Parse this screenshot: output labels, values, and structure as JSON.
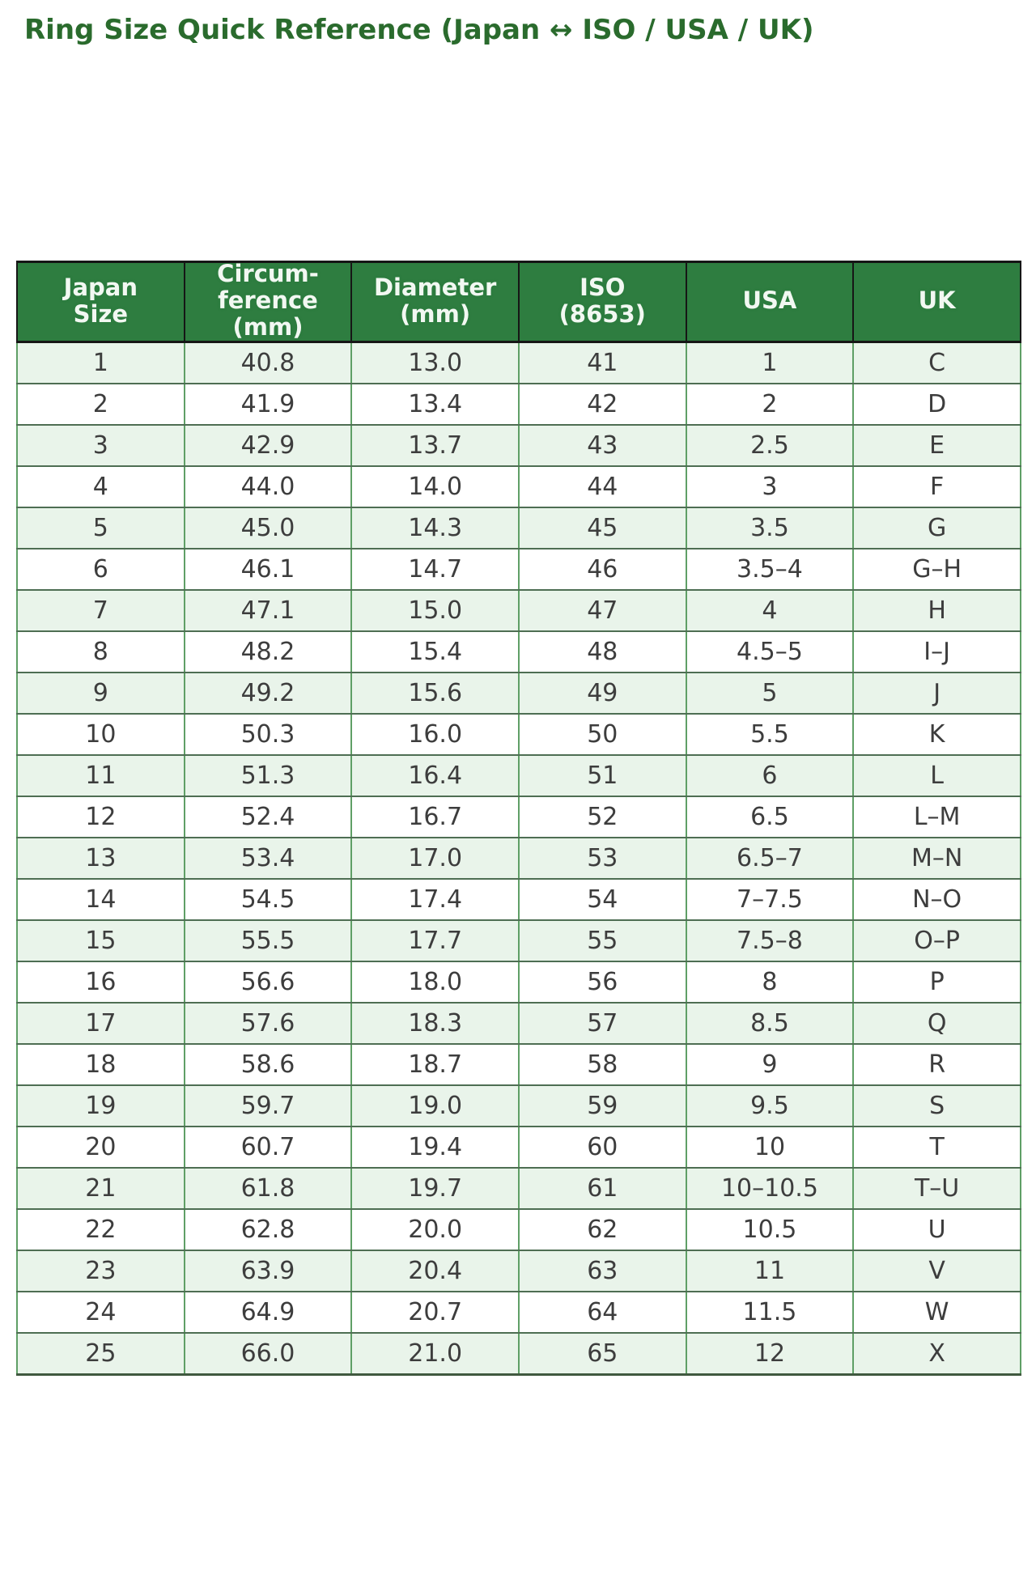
{
  "page": {
    "title": "Ring Size Quick Reference (Japan ↔ ISO / USA / UK)"
  },
  "colors": {
    "title_text": "#2a6b2d",
    "header_background": "#2e7d40",
    "header_text": "#f2f8f2",
    "header_border": "#161616",
    "row_alt_background": "#e9f4ea",
    "row_background": "#ffffff",
    "vertical_border": "#5f9f66",
    "horizontal_border": "#4e6e53",
    "cell_text": "#3d3d3d"
  },
  "table": {
    "columns": [
      "Japan\nSize",
      "Circum-\nference\n(mm)",
      "Diameter\n(mm)",
      "ISO\n(8653)",
      "USA",
      "UK"
    ],
    "rows": [
      [
        "1",
        "40.8",
        "13.0",
        "41",
        "1",
        "C"
      ],
      [
        "2",
        "41.9",
        "13.4",
        "42",
        "2",
        "D"
      ],
      [
        "3",
        "42.9",
        "13.7",
        "43",
        "2.5",
        "E"
      ],
      [
        "4",
        "44.0",
        "14.0",
        "44",
        "3",
        "F"
      ],
      [
        "5",
        "45.0",
        "14.3",
        "45",
        "3.5",
        "G"
      ],
      [
        "6",
        "46.1",
        "14.7",
        "46",
        "3.5–4",
        "G–H"
      ],
      [
        "7",
        "47.1",
        "15.0",
        "47",
        "4",
        "H"
      ],
      [
        "8",
        "48.2",
        "15.4",
        "48",
        "4.5–5",
        "I–J"
      ],
      [
        "9",
        "49.2",
        "15.6",
        "49",
        "5",
        "J"
      ],
      [
        "10",
        "50.3",
        "16.0",
        "50",
        "5.5",
        "K"
      ],
      [
        "11",
        "51.3",
        "16.4",
        "51",
        "6",
        "L"
      ],
      [
        "12",
        "52.4",
        "16.7",
        "52",
        "6.5",
        "L–M"
      ],
      [
        "13",
        "53.4",
        "17.0",
        "53",
        "6.5–7",
        "M–N"
      ],
      [
        "14",
        "54.5",
        "17.4",
        "54",
        "7–7.5",
        "N–O"
      ],
      [
        "15",
        "55.5",
        "17.7",
        "55",
        "7.5–8",
        "O–P"
      ],
      [
        "16",
        "56.6",
        "18.0",
        "56",
        "8",
        "P"
      ],
      [
        "17",
        "57.6",
        "18.3",
        "57",
        "8.5",
        "Q"
      ],
      [
        "18",
        "58.6",
        "18.7",
        "58",
        "9",
        "R"
      ],
      [
        "19",
        "59.7",
        "19.0",
        "59",
        "9.5",
        "S"
      ],
      [
        "20",
        "60.7",
        "19.4",
        "60",
        "10",
        "T"
      ],
      [
        "21",
        "61.8",
        "19.7",
        "61",
        "10–10.5",
        "T–U"
      ],
      [
        "22",
        "62.8",
        "20.0",
        "62",
        "10.5",
        "U"
      ],
      [
        "23",
        "63.9",
        "20.4",
        "63",
        "11",
        "V"
      ],
      [
        "24",
        "64.9",
        "20.7",
        "64",
        "11.5",
        "W"
      ],
      [
        "25",
        "66.0",
        "21.0",
        "65",
        "12",
        "X"
      ]
    ]
  }
}
